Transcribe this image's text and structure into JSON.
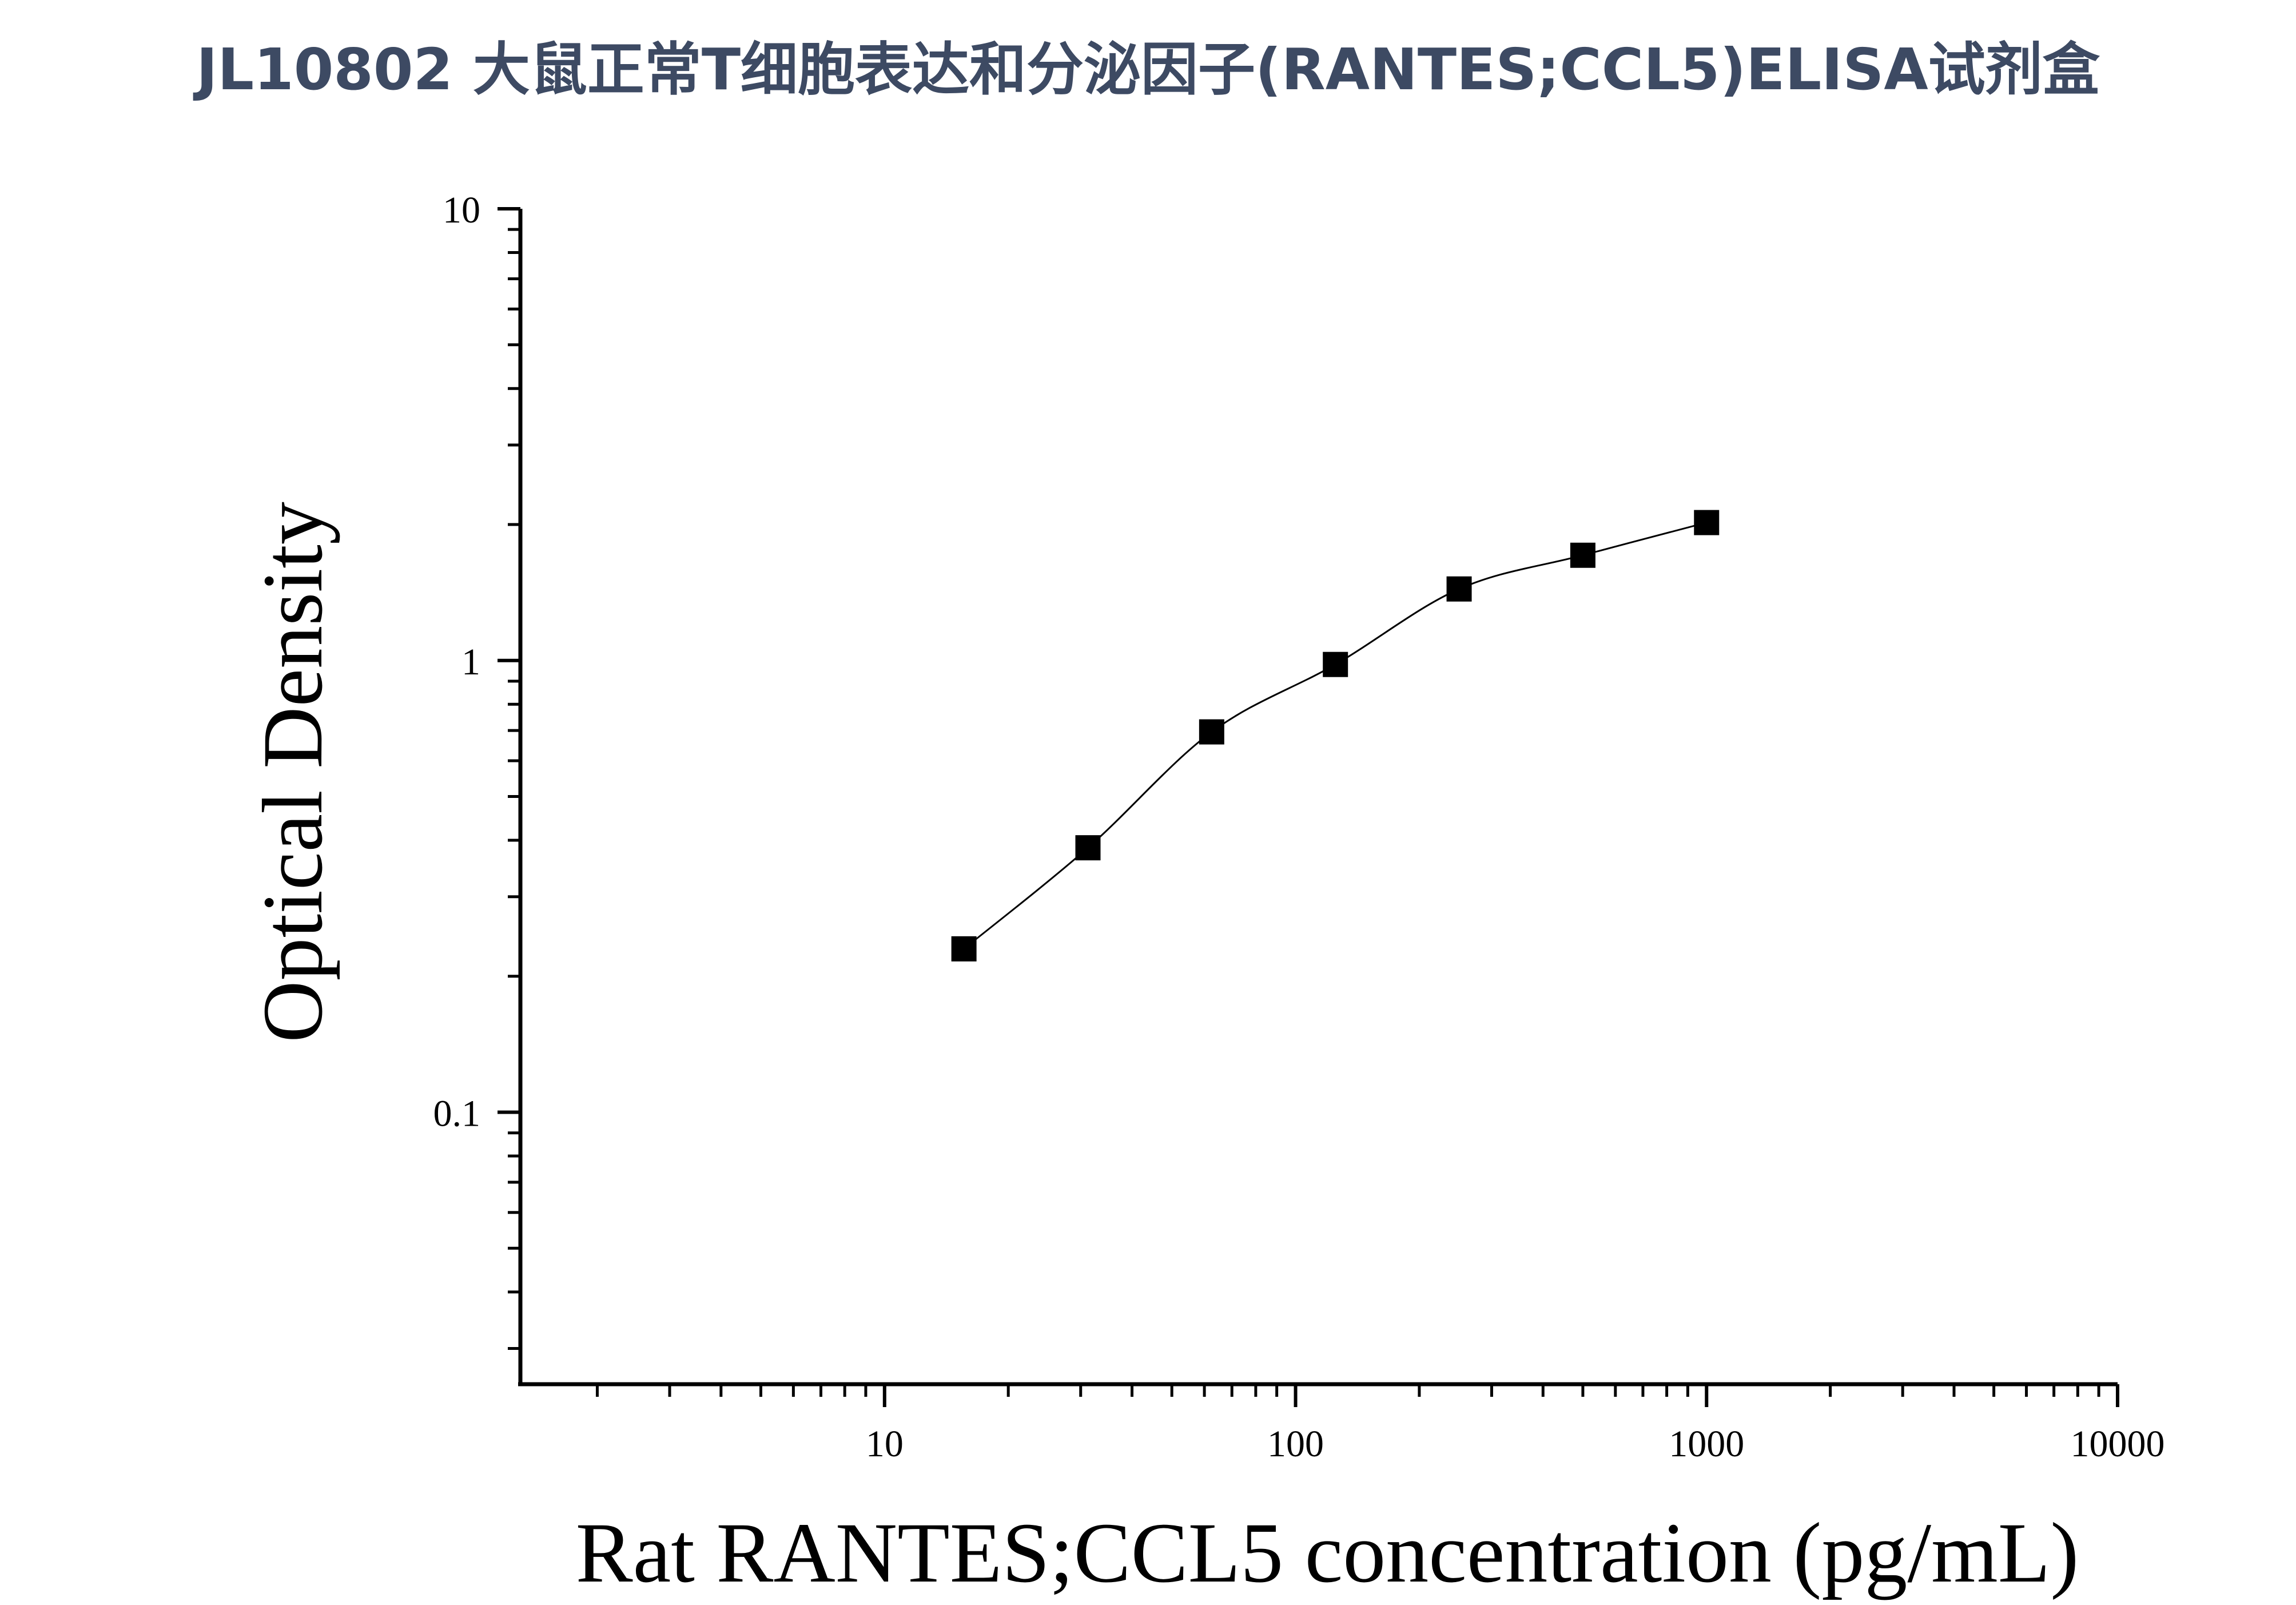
{
  "title": "JL10802 大鼠正常T细胞表达和分泌因子(RANTES;CCL5)ELISA试剂盒",
  "chart_data": {
    "type": "scatter",
    "title": "JL10802 大鼠正常T细胞表达和分泌因子(RANTES;CCL5)ELISA试剂盒",
    "xlabel": "Rat RANTES;CCL5 concentration (pg/mL)",
    "ylabel": "Optical Density",
    "x_scale": "log",
    "y_scale": "log",
    "xlim": [
      1.3,
      10000
    ],
    "ylim": [
      0.025,
      10
    ],
    "x_ticks": [
      "10",
      "100",
      "1000",
      "10000"
    ],
    "y_ticks": [
      "0.1",
      "1",
      "10"
    ],
    "grid": false,
    "fit_curve": true,
    "x": [
      15.6,
      31.25,
      62.5,
      125,
      250,
      500,
      1000
    ],
    "y": [
      0.23,
      0.385,
      0.695,
      0.98,
      1.44,
      1.71,
      2.02
    ],
    "marker": "square",
    "marker_color": "#000000"
  }
}
